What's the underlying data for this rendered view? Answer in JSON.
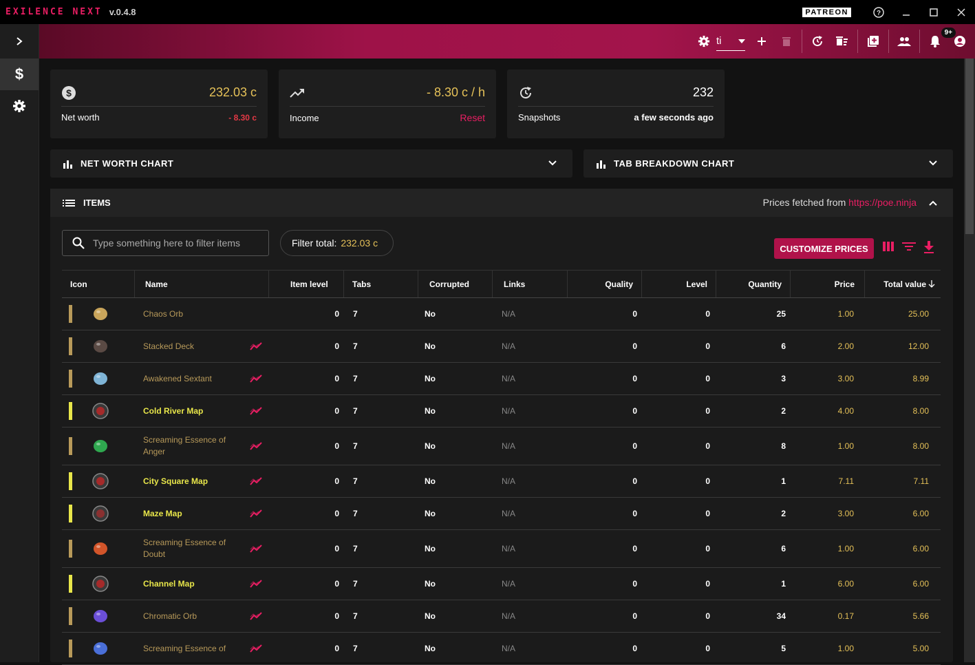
{
  "app": {
    "name": "EXILENCE NEXT",
    "version": "v.0.4.8",
    "patreon_label": "PATREON"
  },
  "appbar": {
    "profile": "ti",
    "notification_badge": "9+"
  },
  "cards": {
    "networth": {
      "value": "232.03 c",
      "label": "Net worth",
      "change": "- 8.30 c"
    },
    "income": {
      "value": "- 8.30 c / h",
      "label": "Income",
      "action": "Reset"
    },
    "snapshots": {
      "value": "232",
      "label": "Snapshots",
      "time": "a few seconds ago"
    }
  },
  "panels": {
    "networth_chart": "NET WORTH CHART",
    "tab_breakdown_chart": "TAB BREAKDOWN CHART"
  },
  "items": {
    "title": "ITEMS",
    "prices_from_label": "Prices fetched from",
    "prices_from_link": "https://poe.ninja",
    "filter_placeholder": "Type something here to filter items",
    "filter_total_label": "Filter total:",
    "filter_total_value": "232.03 c",
    "customize_label": "CUSTOMIZE PRICES"
  },
  "table": {
    "headers": [
      "Icon",
      "Name",
      "Item level",
      "Tabs",
      "Corrupted",
      "Links",
      "Quality",
      "Level",
      "Quantity",
      "Price",
      "Total value"
    ],
    "rows": [
      {
        "name": "Chaos Orb",
        "kind": "currency",
        "trend": false,
        "ilvl": "0",
        "tabs": "7",
        "corrupted": "No",
        "links": "N/A",
        "quality": "0",
        "level": "0",
        "qty": "25",
        "price": "1.00",
        "total": "25.00",
        "icon_color": "#c9a55b"
      },
      {
        "name": "Stacked Deck",
        "kind": "currency",
        "trend": true,
        "ilvl": "0",
        "tabs": "7",
        "corrupted": "No",
        "links": "N/A",
        "quality": "0",
        "level": "0",
        "qty": "6",
        "price": "2.00",
        "total": "12.00",
        "icon_color": "#5a4a44"
      },
      {
        "name": "Awakened Sextant",
        "kind": "currency",
        "trend": true,
        "ilvl": "0",
        "tabs": "7",
        "corrupted": "No",
        "links": "N/A",
        "quality": "0",
        "level": "0",
        "qty": "3",
        "price": "3.00",
        "total": "8.99",
        "icon_color": "#7fb4d6"
      },
      {
        "name": "Cold River Map",
        "kind": "map",
        "trend": true,
        "ilvl": "0",
        "tabs": "7",
        "corrupted": "No",
        "links": "N/A",
        "quality": "0",
        "level": "0",
        "qty": "2",
        "price": "4.00",
        "total": "8.00",
        "icon_color": "#a52a2a"
      },
      {
        "name": "Screaming Essence of Anger",
        "kind": "currency",
        "trend": true,
        "ilvl": "0",
        "tabs": "7",
        "corrupted": "No",
        "links": "N/A",
        "quality": "0",
        "level": "0",
        "qty": "8",
        "price": "1.00",
        "total": "8.00",
        "icon_color": "#2fa84f"
      },
      {
        "name": "City Square Map",
        "kind": "map",
        "trend": true,
        "ilvl": "0",
        "tabs": "7",
        "corrupted": "No",
        "links": "N/A",
        "quality": "0",
        "level": "0",
        "qty": "1",
        "price": "7.11",
        "total": "7.11",
        "icon_color": "#a52a2a"
      },
      {
        "name": "Maze Map",
        "kind": "map",
        "trend": true,
        "ilvl": "0",
        "tabs": "7",
        "corrupted": "No",
        "links": "N/A",
        "quality": "0",
        "level": "0",
        "qty": "2",
        "price": "3.00",
        "total": "6.00",
        "icon_color": "#8a3030"
      },
      {
        "name": "Screaming Essence of Doubt",
        "kind": "currency",
        "trend": true,
        "ilvl": "0",
        "tabs": "7",
        "corrupted": "No",
        "links": "N/A",
        "quality": "0",
        "level": "0",
        "qty": "6",
        "price": "1.00",
        "total": "6.00",
        "icon_color": "#d2552a"
      },
      {
        "name": "Channel Map",
        "kind": "map",
        "trend": true,
        "ilvl": "0",
        "tabs": "7",
        "corrupted": "No",
        "links": "N/A",
        "quality": "0",
        "level": "0",
        "qty": "1",
        "price": "6.00",
        "total": "6.00",
        "icon_color": "#a52a2a"
      },
      {
        "name": "Chromatic Orb",
        "kind": "currency",
        "trend": true,
        "ilvl": "0",
        "tabs": "7",
        "corrupted": "No",
        "links": "N/A",
        "quality": "0",
        "level": "0",
        "qty": "34",
        "price": "0.17",
        "total": "5.66",
        "icon_color": "#6b4fd8"
      },
      {
        "name": "Screaming Essence of",
        "kind": "currency",
        "trend": true,
        "ilvl": "0",
        "tabs": "7",
        "corrupted": "No",
        "links": "N/A",
        "quality": "0",
        "level": "0",
        "qty": "5",
        "price": "1.00",
        "total": "5.00",
        "icon_color": "#4a6fd8"
      }
    ]
  },
  "colors": {
    "accent": "#e91e63",
    "gold": "#e5c158",
    "currency_rarity": "#b89a5a",
    "map_rarity": "#e8e64a"
  }
}
